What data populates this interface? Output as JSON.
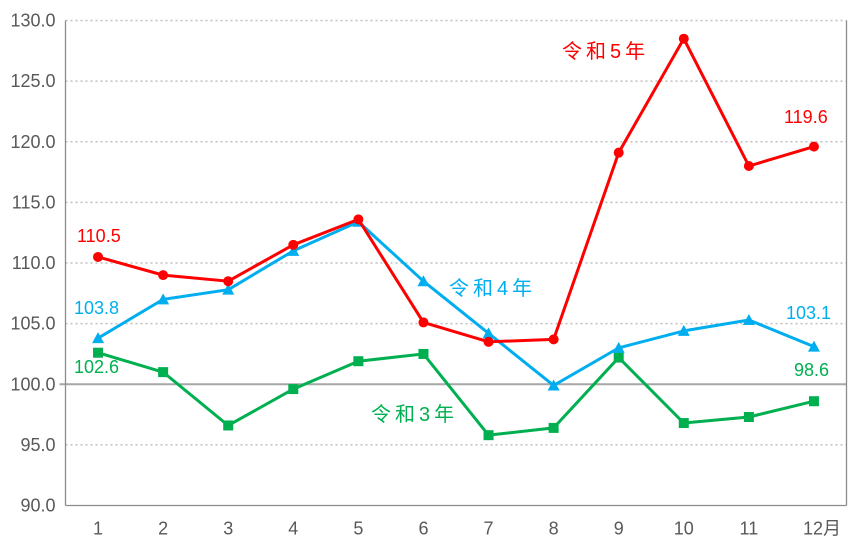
{
  "chart_data": {
    "type": "line",
    "x_tick_labels": [
      "1",
      "2",
      "3",
      "4",
      "5",
      "6",
      "7",
      "8",
      "9",
      "10",
      "11",
      "12月"
    ],
    "ylim": [
      90,
      130
    ],
    "yticks": [
      90,
      95,
      100,
      105,
      110,
      115,
      120,
      125,
      130
    ],
    "ytick_labels": [
      "90.0",
      "95.0",
      "100.0",
      "105.0",
      "110.0",
      "115.0",
      "120.0",
      "125.0",
      "130.0"
    ],
    "baseline_value": 100,
    "grid": "horizontal-dotted",
    "legend_position": "inline-series-labels",
    "series": [
      {
        "name": "令和3年",
        "color": "#00B050",
        "marker": "square",
        "values": [
          102.6,
          101.0,
          96.6,
          99.6,
          101.9,
          102.5,
          95.8,
          96.4,
          102.2,
          96.8,
          97.3,
          98.6
        ]
      },
      {
        "name": "令和4年",
        "color": "#00AEEF",
        "marker": "triangle",
        "values": [
          103.8,
          107.0,
          107.8,
          111.0,
          113.4,
          108.5,
          104.2,
          99.9,
          103.0,
          104.4,
          105.3,
          103.1
        ]
      },
      {
        "name": "令和5年",
        "color": "#FF0000",
        "marker": "circle",
        "values": [
          110.5,
          109.0,
          108.5,
          111.5,
          113.6,
          105.1,
          103.5,
          103.7,
          119.1,
          128.5,
          118.0,
          119.6
        ]
      }
    ],
    "annotations": {
      "r5_first": "110.5",
      "r5_last": "119.6",
      "r4_first": "103.8",
      "r4_last": "103.1",
      "r3_first": "102.6",
      "r3_last": "98.6",
      "r5_name": "令和5年",
      "r4_name": "令和4年",
      "r3_name": "令和3年"
    },
    "axis_colors": {
      "tick_label": "#595959",
      "gridline": "#BFBFBF",
      "baseline": "#A6A6A6",
      "axis_line": "#8C8C8C"
    }
  }
}
